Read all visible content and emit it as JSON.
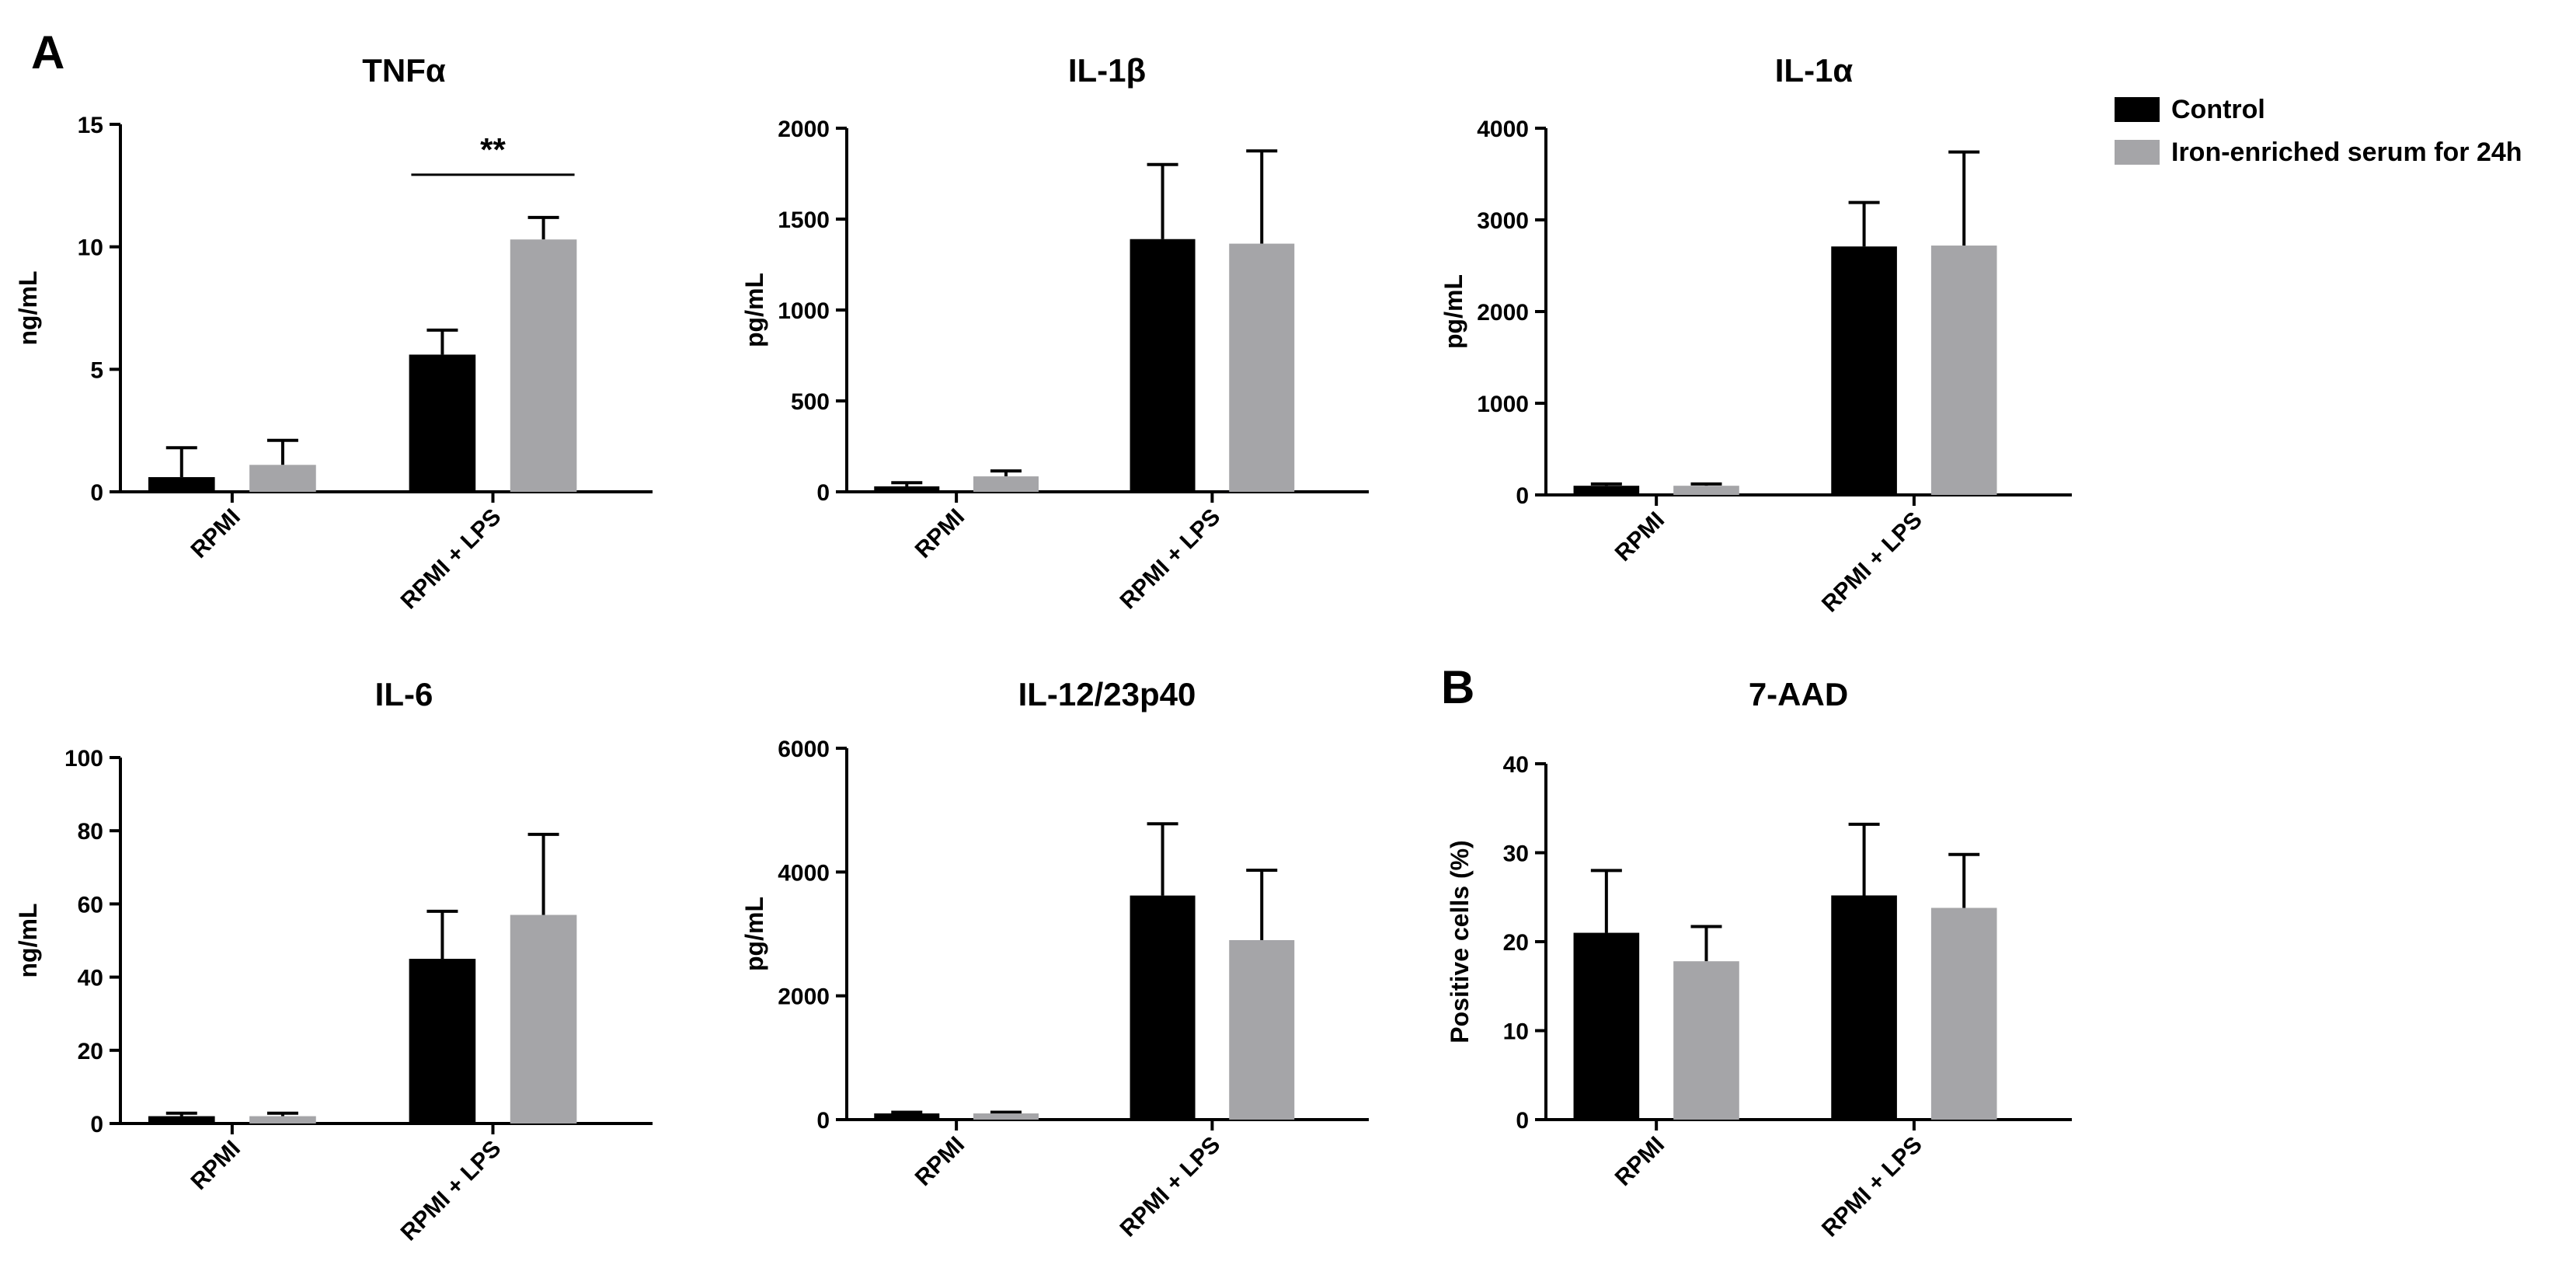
{
  "panel_labels": {
    "a": "A",
    "b": "B"
  },
  "legend": {
    "items": [
      {
        "label": "Control",
        "color": "#000000"
      },
      {
        "label": "Iron-enriched serum for 24h",
        "color": "#a5a5a8"
      }
    ]
  },
  "chart_data": [
    {
      "type": "bar",
      "title": "TNFα",
      "ylabel": "ng/mL",
      "xlabel": "",
      "ylim": [
        0,
        15
      ],
      "yticks": [
        "0",
        "5",
        "10",
        "15"
      ],
      "categories": [
        "RPMI",
        "RPMI + LPS"
      ],
      "series": [
        {
          "name": "Control",
          "values": [
            0.6,
            5.6
          ],
          "errors": [
            1.2,
            1.0
          ]
        },
        {
          "name": "Iron-enriched serum for 24h",
          "values": [
            1.1,
            10.3
          ],
          "errors": [
            1.0,
            0.9
          ]
        }
      ],
      "annotation": {
        "text": "**",
        "category_index": 1
      }
    },
    {
      "type": "bar",
      "title": "IL-1β",
      "ylabel": "pg/mL",
      "xlabel": "",
      "ylim": [
        0,
        2000
      ],
      "yticks": [
        "0",
        "500",
        "1000",
        "1500",
        "2000"
      ],
      "categories": [
        "RPMI",
        "RPMI + LPS"
      ],
      "series": [
        {
          "name": "Control",
          "values": [
            30,
            1390
          ],
          "errors": [
            20,
            410
          ]
        },
        {
          "name": "Iron-enriched serum for 24h",
          "values": [
            85,
            1365
          ],
          "errors": [
            30,
            510
          ]
        }
      ]
    },
    {
      "type": "bar",
      "title": "IL-1α",
      "ylabel": "pg/mL",
      "xlabel": "",
      "ylim": [
        0,
        4000
      ],
      "yticks": [
        "0",
        "1000",
        "2000",
        "3000",
        "4000"
      ],
      "categories": [
        "RPMI",
        "RPMI + LPS"
      ],
      "series": [
        {
          "name": "Control",
          "values": [
            100,
            2710
          ],
          "errors": [
            20,
            480
          ]
        },
        {
          "name": "Iron-enriched serum for 24h",
          "values": [
            100,
            2720
          ],
          "errors": [
            20,
            1020
          ]
        }
      ]
    },
    {
      "type": "bar",
      "title": "IL-6",
      "ylabel": "ng/mL",
      "xlabel": "",
      "ylim": [
        0,
        100
      ],
      "yticks": [
        "0",
        "20",
        "40",
        "60",
        "80",
        "100"
      ],
      "categories": [
        "RPMI",
        "RPMI + LPS"
      ],
      "series": [
        {
          "name": "Control",
          "values": [
            2,
            45
          ],
          "errors": [
            0.8,
            13
          ]
        },
        {
          "name": "Iron-enriched serum for 24h",
          "values": [
            2,
            57
          ],
          "errors": [
            0.8,
            22
          ]
        }
      ]
    },
    {
      "type": "bar",
      "title": "IL-12/23p40",
      "ylabel": "pg/mL",
      "xlabel": "",
      "ylim": [
        0,
        6000
      ],
      "yticks": [
        "0",
        "2000",
        "4000",
        "6000"
      ],
      "categories": [
        "RPMI",
        "RPMI + LPS"
      ],
      "series": [
        {
          "name": "Control",
          "values": [
            100,
            3620
          ],
          "errors": [
            20,
            1160
          ]
        },
        {
          "name": "Iron-enriched serum for 24h",
          "values": [
            100,
            2900
          ],
          "errors": [
            20,
            1130
          ]
        }
      ]
    },
    {
      "type": "bar",
      "title": "7-AAD",
      "ylabel": "Positive cells (%)",
      "xlabel": "",
      "ylim": [
        0,
        40
      ],
      "yticks": [
        "0",
        "10",
        "20",
        "30",
        "40"
      ],
      "categories": [
        "RPMI",
        "RPMI + LPS"
      ],
      "series": [
        {
          "name": "Control",
          "values": [
            21,
            25.2
          ],
          "errors": [
            7,
            8
          ]
        },
        {
          "name": "Iron-enriched serum for 24h",
          "values": [
            17.8,
            23.8
          ],
          "errors": [
            3.9,
            6
          ]
        }
      ]
    }
  ]
}
